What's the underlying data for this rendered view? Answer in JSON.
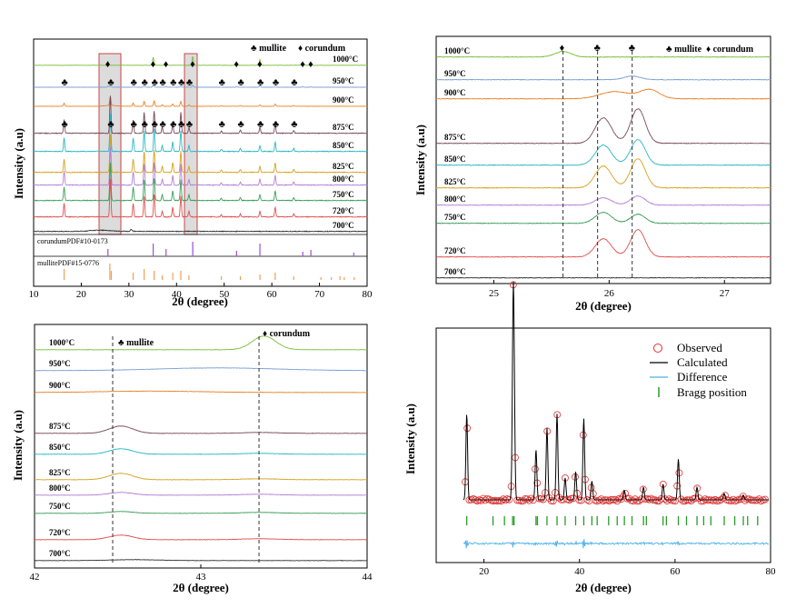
{
  "chart_data": [
    {
      "type": "line",
      "panel": "top-left",
      "xlabel": "2θ (degree)",
      "ylabel": "Intensity (a.u)",
      "xlim": [
        10,
        80
      ],
      "xticks": [
        "10",
        "20",
        "30",
        "40",
        "50",
        "60",
        "70",
        "80"
      ],
      "legend": {
        "mullite": "♣ mullite",
        "corundum": "♦ corundum"
      },
      "traces": [
        {
          "name": "1000°C",
          "color": "#7cbf3a"
        },
        {
          "name": "950°C",
          "color": "#7aa0d4"
        },
        {
          "name": "900°C",
          "color": "#e8832a"
        },
        {
          "name": "875°C",
          "color": "#7a4a5a"
        },
        {
          "name": "850°C",
          "color": "#2ab8c4"
        },
        {
          "name": "825°C",
          "color": "#d7a21e"
        },
        {
          "name": "800°C",
          "color": "#b47fd6"
        },
        {
          "name": "750°C",
          "color": "#3a9e5a"
        },
        {
          "name": "720°C",
          "color": "#e05050"
        },
        {
          "name": "700°C",
          "color": "#333333"
        }
      ],
      "references": [
        {
          "name": "corundumPDF#10-0173",
          "color": "#9a4fd8",
          "positions": [
            25.6,
            35.1,
            37.8,
            43.4,
            52.6,
            57.5,
            66.5,
            68.2,
            77.2
          ]
        },
        {
          "name": "mullitePDF#15-0776",
          "color": "#f0a050",
          "positions": [
            16.4,
            26.0,
            26.3,
            30.9,
            33.2,
            35.3,
            37.0,
            39.2,
            40.9,
            42.6,
            49.4,
            53.4,
            57.5,
            60.7,
            64.6,
            70.3,
            72.5,
            74.3,
            75.2,
            77.3
          ]
        }
      ],
      "mullite_peaks": [
        16.4,
        26.1,
        30.9,
        33.2,
        35.3,
        37.0,
        39.2,
        40.9,
        42.6,
        49.4,
        53.4,
        57.5,
        60.7,
        64.6
      ],
      "corundum_peaks": [
        25.6,
        35.1,
        37.8,
        43.4,
        52.6,
        57.5,
        66.5,
        68.2
      ]
    },
    {
      "type": "line",
      "panel": "top-right",
      "xlabel": "2θ (degree)",
      "ylabel": "Intensity (a.u)",
      "xlim": [
        24.5,
        27.4
      ],
      "xticks": [
        "25",
        "26",
        "27"
      ],
      "legend": {
        "mullite": "♣ mullite",
        "corundum": "♦ corundum"
      },
      "markers": [
        25.6,
        25.9,
        26.2
      ],
      "traces": [
        "1000°C",
        "950°C",
        "900°C",
        "875°C",
        "850°C",
        "825°C",
        "800°C",
        "750°C",
        "720°C",
        "700°C"
      ]
    },
    {
      "type": "line",
      "panel": "bottom-left",
      "xlabel": "2θ (degree)",
      "ylabel": "Intensity (a.u)",
      "xlim": [
        42,
        44
      ],
      "xticks": [
        "42",
        "43",
        "44"
      ],
      "legend": {
        "mullite": "♣ mullite",
        "corundum": "♦ corundum"
      },
      "markers": [
        42.47,
        43.35
      ],
      "traces": [
        "1000°C",
        "950°C",
        "900°C",
        "875°C",
        "850°C",
        "825°C",
        "800°C",
        "750°C",
        "720°C",
        "700°C"
      ]
    },
    {
      "type": "scatter",
      "panel": "bottom-right",
      "xlabel": "2θ (degree)",
      "ylabel": "Intensity (a.u)",
      "xlim": [
        10,
        80
      ],
      "xticks": [
        "20",
        "40",
        "60",
        "80"
      ],
      "legend": [
        "Observed",
        "Calculated",
        "Difference",
        "Bragg position"
      ],
      "peaks": [
        [
          16.4,
          0.55
        ],
        [
          26.1,
          1.0
        ],
        [
          26.3,
          0.62
        ],
        [
          30.9,
          0.32
        ],
        [
          33.2,
          0.46
        ],
        [
          35.3,
          0.55
        ],
        [
          37.0,
          0.14
        ],
        [
          39.2,
          0.18
        ],
        [
          40.9,
          0.52
        ],
        [
          42.6,
          0.12
        ],
        [
          49.4,
          0.06
        ],
        [
          53.4,
          0.08
        ],
        [
          57.5,
          0.1
        ],
        [
          60.7,
          0.26
        ],
        [
          64.6,
          0.08
        ],
        [
          70.3,
          0.04
        ],
        [
          74.3,
          0.03
        ]
      ],
      "bragg_positions": [
        16.4,
        21.9,
        24.3,
        26.0,
        26.3,
        30.9,
        31.2,
        33.2,
        35.3,
        37.0,
        39.2,
        40.9,
        42.6,
        43.7,
        46.1,
        47.9,
        49.4,
        51.0,
        53.4,
        54.0,
        57.5,
        58.2,
        60.7,
        62.4,
        64.6,
        66.0,
        67.5,
        70.3,
        72.5,
        74.3,
        75.2,
        77.3
      ]
    }
  ]
}
